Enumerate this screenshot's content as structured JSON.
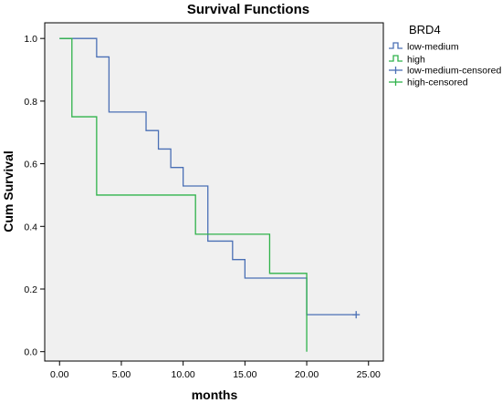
{
  "chart_data": {
    "type": "line",
    "title": "Survival Functions",
    "xlabel": "months",
    "ylabel": "Cum Survival",
    "xlim": [
      -1.2,
      26.2
    ],
    "ylim": [
      -0.03,
      1.05
    ],
    "x_ticks": [
      0,
      5,
      10,
      15,
      20,
      25
    ],
    "x_tick_labels": [
      "0.00",
      "5.00",
      "10.00",
      "15.00",
      "20.00",
      "25.00"
    ],
    "y_ticks": [
      0,
      0.2,
      0.4,
      0.6,
      0.8,
      1.0
    ],
    "y_tick_labels": [
      "0.0",
      "0.2",
      "0.4",
      "0.6",
      "0.8",
      "1.0"
    ],
    "grid": false,
    "legend": {
      "title": "BRD4",
      "placement": "right",
      "entries": [
        "low-medium",
        "high",
        "low-medium-censored",
        "high-censored"
      ]
    },
    "series": [
      {
        "name": "low-medium",
        "color": "#4a6fb5",
        "step": true,
        "x": [
          0,
          3,
          4,
          7,
          8,
          9,
          10,
          12,
          14,
          15,
          20,
          24
        ],
        "y": [
          1.0,
          0.941,
          0.765,
          0.706,
          0.647,
          0.588,
          0.529,
          0.353,
          0.294,
          0.235,
          0.118,
          0.118
        ],
        "censored": [
          [
            24,
            0.118
          ]
        ]
      },
      {
        "name": "high",
        "color": "#2fb24a",
        "step": true,
        "x": [
          0,
          1,
          3,
          11,
          17,
          20
        ],
        "y": [
          1.0,
          0.75,
          0.5,
          0.375,
          0.25,
          0.0
        ],
        "censored": []
      }
    ]
  }
}
